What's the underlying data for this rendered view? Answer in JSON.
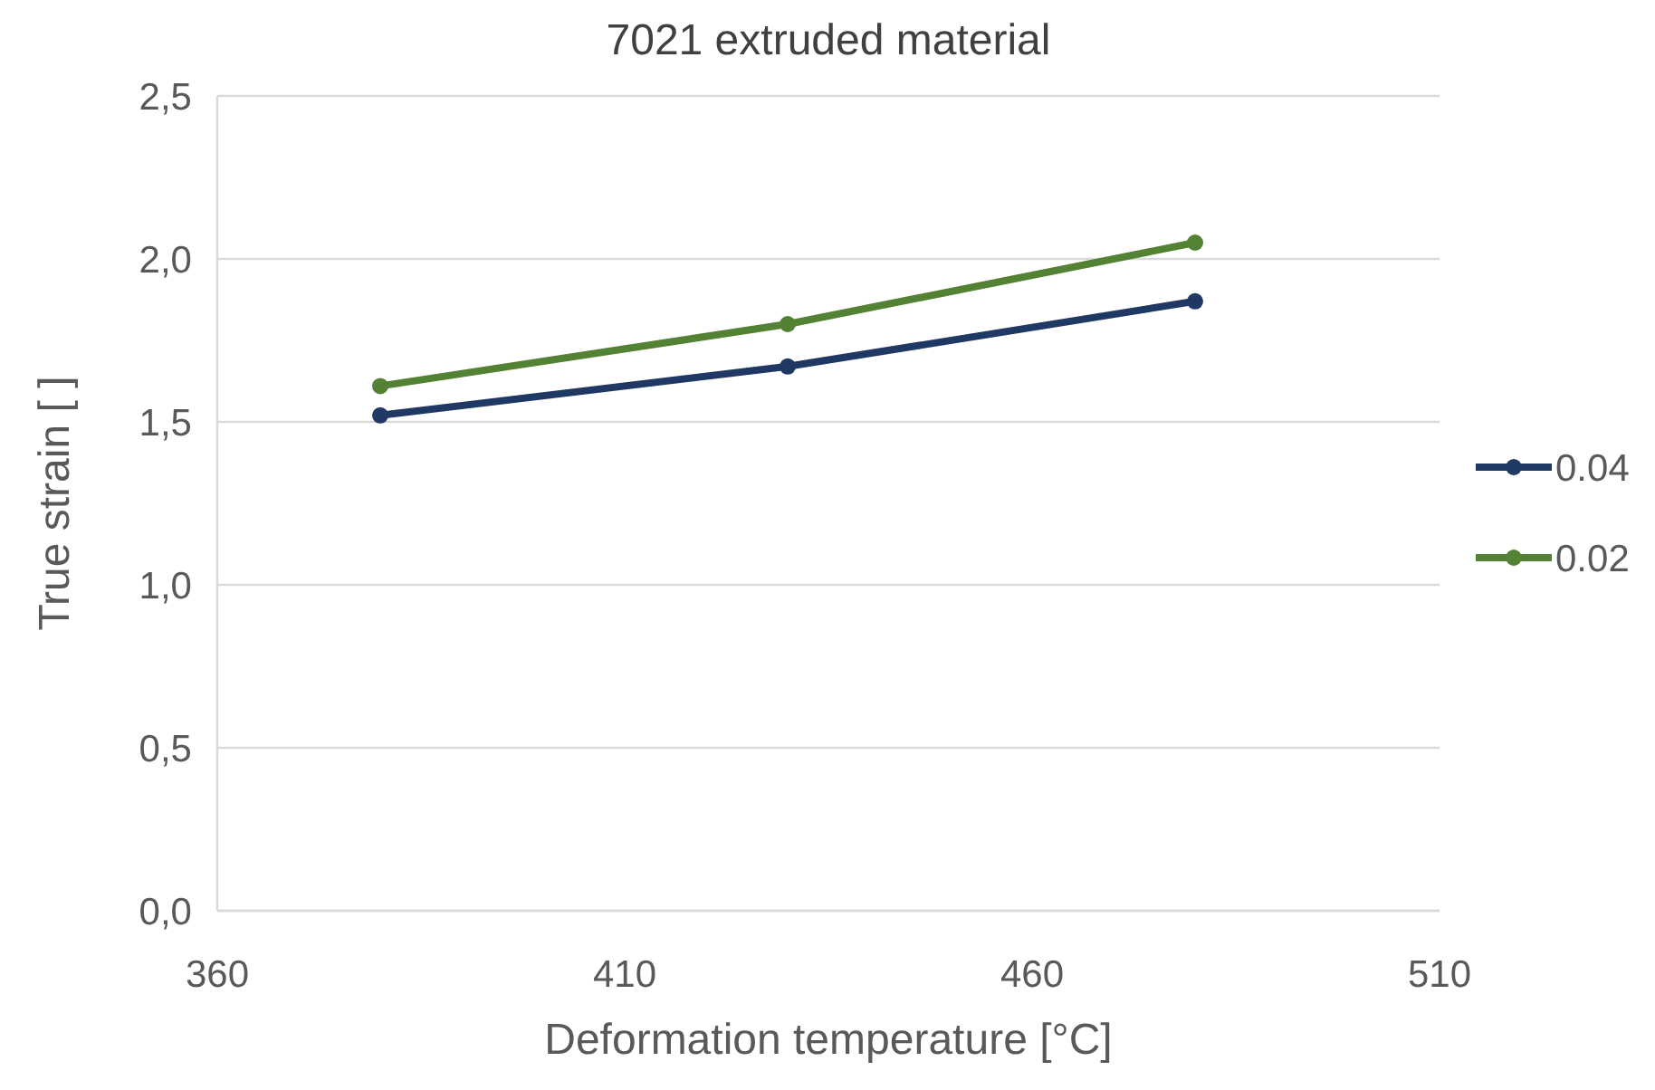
{
  "chart_data": {
    "type": "line",
    "title": "7021 extruded material",
    "xlabel": "Deformation temperature [°C]",
    "ylabel": "True strain [ ]",
    "x": [
      380,
      430,
      480
    ],
    "series": [
      {
        "name": "0.04",
        "color": "#203864",
        "values": [
          1.52,
          1.67,
          1.87
        ]
      },
      {
        "name": "0.02",
        "color": "#548235",
        "values": [
          1.61,
          1.8,
          2.05
        ]
      }
    ],
    "xlim": [
      360,
      510
    ],
    "xticks": [
      360,
      410,
      460,
      510
    ],
    "ylim": [
      0,
      2.5
    ],
    "yticks": [
      {
        "value": 0,
        "label": "0,0"
      },
      {
        "value": 0.5,
        "label": "0,5"
      },
      {
        "value": 1,
        "label": "1,0"
      },
      {
        "value": 1.5,
        "label": "1,5"
      },
      {
        "value": 2,
        "label": "2,0"
      },
      {
        "value": 2.5,
        "label": "2,5"
      }
    ],
    "grid": "y",
    "legend": "right",
    "marker": "circle",
    "line_style": "solid"
  }
}
